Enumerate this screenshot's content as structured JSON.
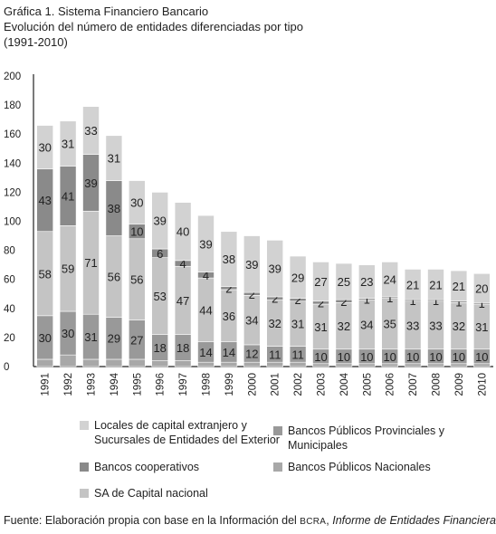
{
  "title": {
    "line1": "Gráfica 1. Sistema Financiero Bancario",
    "line2": "Evolución del número de entidades diferenciadas por tipo",
    "line3": "(1991-2010)"
  },
  "colors": {
    "publicos_nacionales": "#a8a8a8",
    "sa_capital_nacional": "#c4c4c4",
    "cooperativos": "#8a8a8a",
    "provinciales_municipales": "#999999",
    "extranjero": "#d2d2d2"
  },
  "chart_data": {
    "type": "bar",
    "stacked": true,
    "categories": [
      "1991",
      "1992",
      "1993",
      "1994",
      "1995",
      "1996",
      "1997",
      "1998",
      "1999",
      "2000",
      "2001",
      "2002",
      "2003",
      "2004",
      "2005",
      "2006",
      "2007",
      "2008",
      "2009",
      "2010"
    ],
    "ylim": [
      0,
      200
    ],
    "yticks": [
      0,
      20,
      40,
      60,
      80,
      100,
      120,
      140,
      160,
      180,
      200
    ],
    "series": [
      {
        "name": "Bancos Públicos Nacionales",
        "key": "publicos_nacionales",
        "values": [
          5,
          8,
          5,
          5,
          5,
          4,
          4,
          3,
          3,
          3,
          3,
          3,
          2,
          2,
          2,
          2,
          2,
          2,
          2,
          2
        ],
        "labels": false
      },
      {
        "name": "Bancos Públicos Provinciales y Municipales",
        "key": "provinciales_municipales",
        "values": [
          30,
          30,
          31,
          29,
          27,
          18,
          18,
          14,
          14,
          12,
          11,
          11,
          10,
          10,
          10,
          10,
          10,
          10,
          10,
          10
        ],
        "labels": true
      },
      {
        "name": "SA de Capital nacional",
        "key": "sa_capital_nacional",
        "values": [
          58,
          59,
          71,
          56,
          56,
          53,
          47,
          44,
          36,
          34,
          32,
          31,
          31,
          32,
          34,
          35,
          33,
          33,
          32,
          31
        ],
        "labels": true
      },
      {
        "name": "Bancos cooperativos",
        "key": "cooperativos",
        "values": [
          43,
          41,
          39,
          38,
          10,
          6,
          4,
          4,
          2,
          2,
          2,
          2,
          2,
          2,
          1,
          1,
          1,
          1,
          1,
          1
        ],
        "labels": true
      },
      {
        "name": "Locales de capital extranjero y Sucursales de Entidades del Exterior",
        "key": "extranjero",
        "values": [
          30,
          31,
          33,
          31,
          30,
          39,
          40,
          39,
          38,
          39,
          39,
          29,
          27,
          25,
          23,
          24,
          21,
          21,
          21,
          20
        ],
        "labels": true
      }
    ]
  },
  "legend": [
    {
      "key": "extranjero",
      "line1": "Locales de capital extranjero y",
      "line2": "Sucursales de Entidades del Exterior"
    },
    {
      "key": "provinciales_municipales",
      "line1": "Bancos Públicos Provinciales y",
      "line2": "Municipales"
    },
    {
      "key": "cooperativos",
      "line1": "Bancos cooperativos",
      "line2": ""
    },
    {
      "key": "publicos_nacionales",
      "line1": "Bancos Públicos Nacionales",
      "line2": ""
    },
    {
      "key": "sa_capital_nacional",
      "line1": "SA de Capital nacional",
      "line2": ""
    }
  ],
  "source": {
    "prefix": "Fuente: Elaboración propia con base en la Información del ",
    "org": "BCRA",
    "sep": ", ",
    "report": "Informe de Entidades Financieras",
    "suffix": "."
  }
}
